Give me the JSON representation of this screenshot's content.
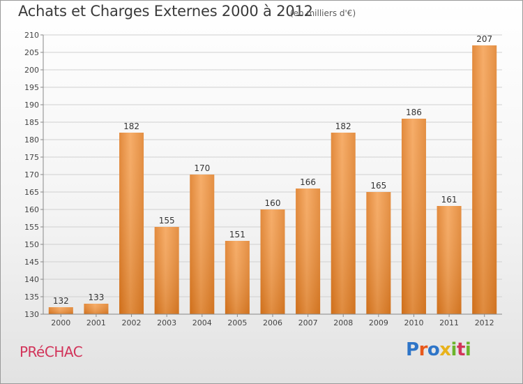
{
  "header": {
    "title": "Achats et Charges Externes 2000 à 2012",
    "subtitle": "(en milliers d'€)"
  },
  "footer": {
    "place": "PRéCHAC",
    "brand": "Proxiti",
    "brand_colors": [
      "#2e75c8",
      "#e8581a",
      "#2e75c8",
      "#e8b21a",
      "#6cb42c",
      "#d2345a",
      "#6cb42c"
    ]
  },
  "chart_data": {
    "type": "bar",
    "categories": [
      "2000",
      "2001",
      "2002",
      "2003",
      "2004",
      "2005",
      "2006",
      "2007",
      "2008",
      "2009",
      "2010",
      "2011",
      "2012"
    ],
    "values": [
      132,
      133,
      182,
      155,
      170,
      151,
      160,
      166,
      182,
      165,
      186,
      161,
      207
    ],
    "ylim": [
      130,
      210
    ],
    "yticks": [
      130,
      135,
      140,
      145,
      150,
      155,
      160,
      165,
      170,
      175,
      180,
      185,
      190,
      195,
      200,
      205,
      210
    ],
    "grid": true,
    "bar_color": "#ec8a35",
    "value_labels": true
  }
}
